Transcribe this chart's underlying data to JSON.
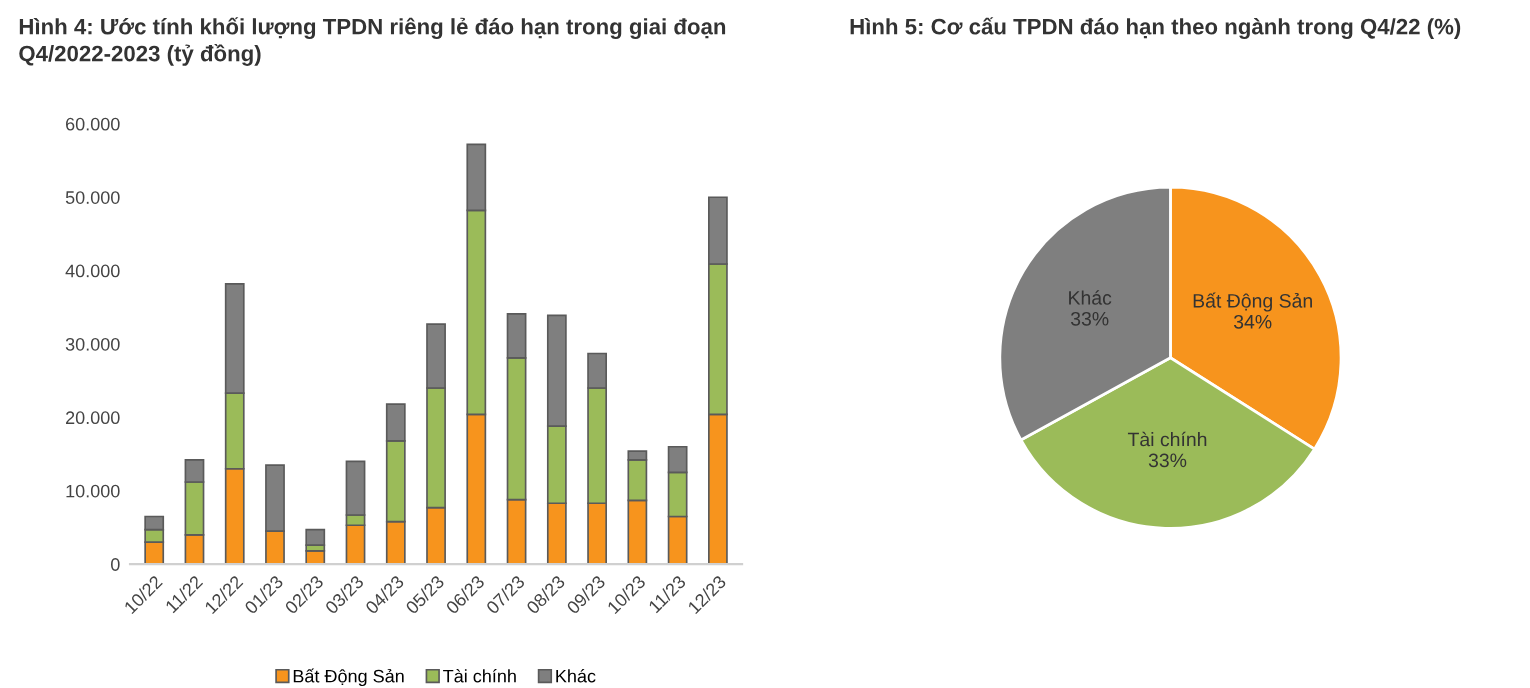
{
  "chart_data": [
    {
      "type": "bar",
      "title": "Hình 4: Ước tính khối lượng TPDN riêng lẻ đáo hạn trong giai đoạn\nQ4/2022-2023 (tỷ đồng)",
      "stacked": true,
      "legend": "bottom",
      "grid": false,
      "categories": [
        "10/22",
        "11/22",
        "12/22",
        "01/23",
        "02/23",
        "03/23",
        "04/23",
        "05/23",
        "06/23",
        "07/23",
        "08/23",
        "09/23",
        "10/23",
        "11/23",
        "12/23"
      ],
      "series": [
        {
          "name": "Bất Động Sản",
          "color": "#f7941d",
          "values": [
            3000,
            4000,
            13000,
            4500,
            1800,
            5300,
            5800,
            7700,
            20400,
            8800,
            8300,
            8300,
            8700,
            6500,
            20400
          ]
        },
        {
          "name": "Tài chính",
          "color": "#9bbb59",
          "values": [
            1700,
            7200,
            10300,
            0,
            800,
            1400,
            11000,
            16300,
            27800,
            19300,
            10500,
            15700,
            5500,
            6000,
            20500
          ]
        },
        {
          "name": "Khác",
          "color": "#7f7f7f",
          "values": [
            1800,
            3000,
            14900,
            9000,
            2100,
            7300,
            5000,
            8700,
            9000,
            6000,
            15100,
            4700,
            1200,
            3500,
            9100
          ]
        }
      ],
      "ylim": [
        0,
        60000
      ],
      "yticks": [
        0,
        {
          "value": 10000,
          "label": "10.000"
        },
        {
          "value": 20000,
          "label": "20.000"
        },
        {
          "value": 30000,
          "label": "30.000"
        },
        {
          "value": 40000,
          "label": "40.000"
        },
        {
          "value": 50000,
          "label": "50.000"
        },
        {
          "value": 60000,
          "label": "60.000"
        }
      ]
    },
    {
      "type": "pie",
      "title": "Hình 5: Cơ cấu TPDN đáo hạn theo ngành trong Q4/22 (%)",
      "legend": false,
      "categories": [
        "Bất Động Sản",
        "Tài chính",
        "Khác"
      ],
      "values": [
        34,
        33,
        33
      ],
      "value_labels": [
        "34%",
        "33%",
        "33%"
      ],
      "colors": [
        "#f7941d",
        "#9bbb59",
        "#7f7f7f"
      ]
    }
  ]
}
